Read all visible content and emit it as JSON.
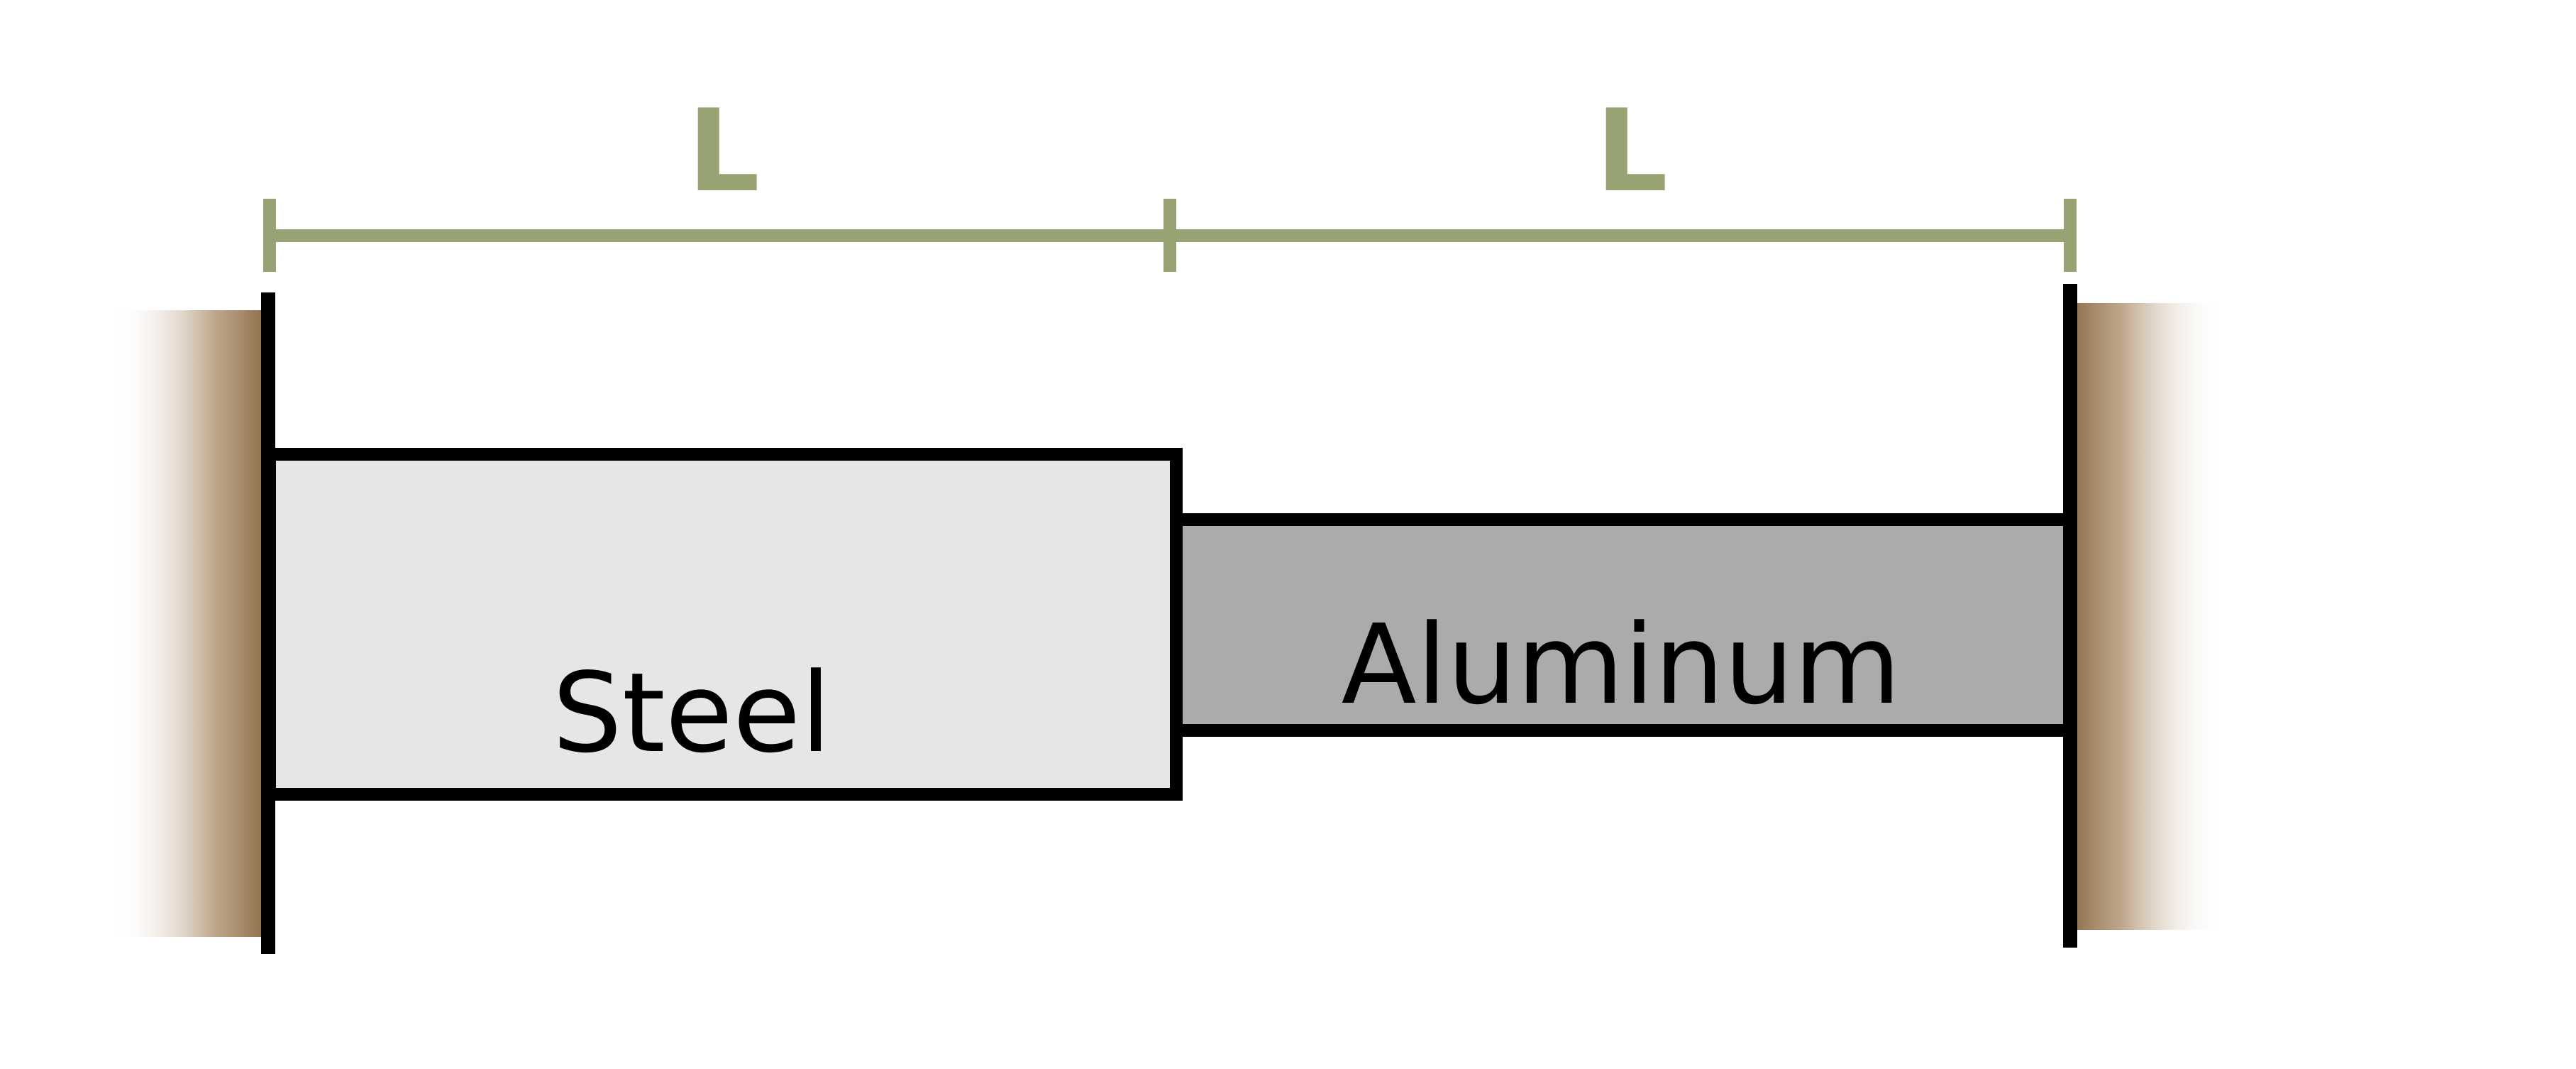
{
  "diagram": {
    "dimensions": {
      "left_length_label": "L",
      "right_length_label": "L"
    },
    "bars": {
      "steel_label": "Steel",
      "aluminum_label": "Aluminum"
    },
    "colors": {
      "dimension_line": "#97a373",
      "outline": "#000000",
      "steel_fill": "#e6e6e6",
      "aluminum_fill": "#ababab",
      "wall": "#8b6a45"
    }
  }
}
